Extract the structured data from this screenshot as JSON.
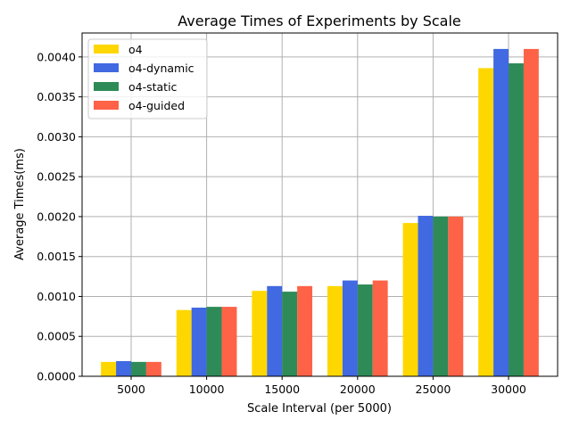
{
  "chart_data": {
    "type": "bar",
    "title": "Average Times of Experiments by Scale",
    "xlabel": "Scale Interval (per 5000)",
    "ylabel": "Average Times(ms)",
    "categories": [
      "5000",
      "10000",
      "15000",
      "20000",
      "25000",
      "30000"
    ],
    "ylim": [
      0,
      0.0043
    ],
    "yticks": [
      "0.0000",
      "0.0005",
      "0.0010",
      "0.0015",
      "0.0020",
      "0.0025",
      "0.0030",
      "0.0035",
      "0.0040"
    ],
    "grid": true,
    "legend_position": "top-left",
    "series": [
      {
        "name": "o4",
        "color": "#FFD700",
        "values": [
          0.00018,
          0.00083,
          0.00107,
          0.00113,
          0.00192,
          0.00386
        ]
      },
      {
        "name": "o4-dynamic",
        "color": "#4169E1",
        "values": [
          0.00019,
          0.00086,
          0.00113,
          0.0012,
          0.00201,
          0.0041
        ]
      },
      {
        "name": "o4-static",
        "color": "#2E8B57",
        "values": [
          0.00018,
          0.00087,
          0.00106,
          0.00115,
          0.002,
          0.00392
        ]
      },
      {
        "name": "o4-guided",
        "color": "#FF6347",
        "values": [
          0.00018,
          0.00087,
          0.00113,
          0.0012,
          0.002,
          0.0041
        ]
      }
    ]
  }
}
